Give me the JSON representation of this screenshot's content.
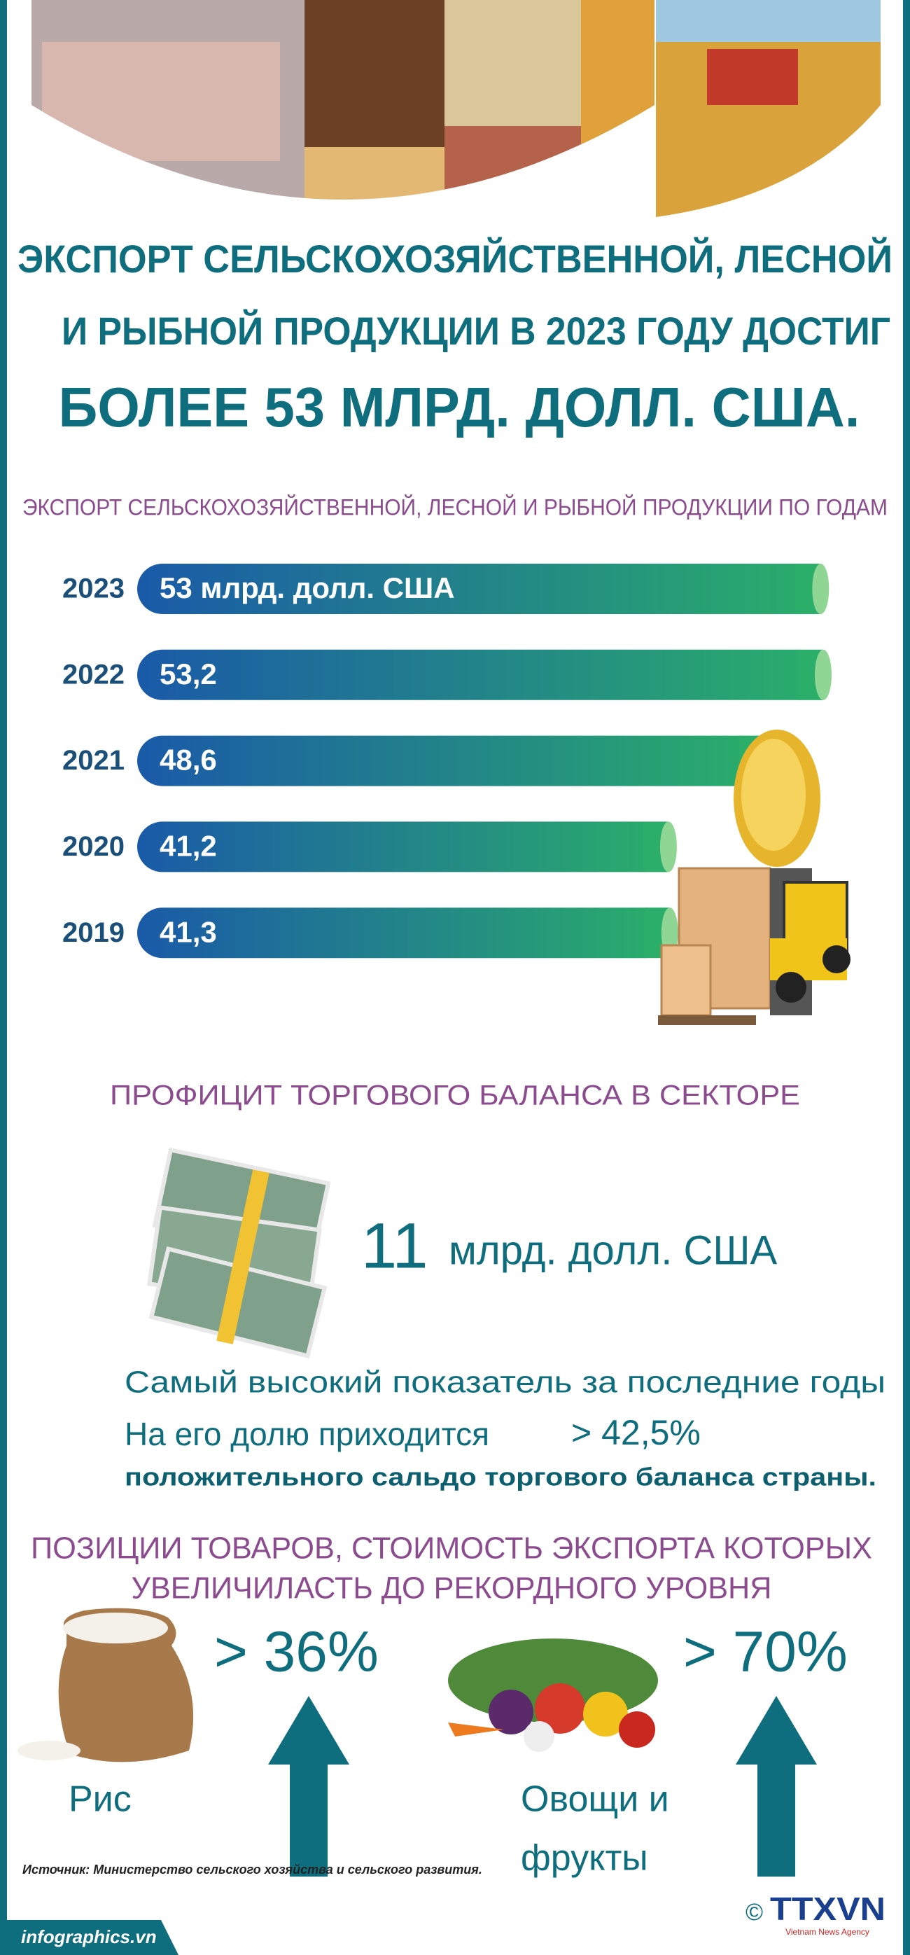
{
  "header": {
    "title_lines": [
      "ЭКСПОРТ СЕЛЬСКОХОЗЯЙСТВЕННОЙ, ЛЕСНОЙ",
      "И РЫБНОЙ ПРОДУКЦИИ В 2023 ГОДУ ДОСТИГ",
      "БОЛЕЕ 53 МЛРД. ДОЛЛ. США."
    ]
  },
  "chart_data": {
    "type": "bar",
    "orientation": "horizontal",
    "title": "ЭКСПОРТ СЕЛЬСКОХОЗЯЙСТВЕННОЙ, ЛЕСНОЙ И РЫБНОЙ ПРОДУКЦИИ ПО ГОДАМ",
    "categories": [
      "2023",
      "2022",
      "2021",
      "2020",
      "2019"
    ],
    "values": [
      53,
      53.2,
      48.6,
      41.2,
      41.3
    ],
    "value_labels": [
      "53 млрд. долл. США",
      "53,2",
      "48,6",
      "41,2",
      "41,3"
    ],
    "color": "#1d61a8"
  },
  "surplus": {
    "title": "ПРОФИЦИТ ТОРГОВОГО БАЛАНСА В СЕКТОРЕ",
    "amount": 11,
    "unit": "млрд. долл. США",
    "note": "Самый высокий показатель за последние годы",
    "share_text": "На его долю приходится",
    "share_label": "> 42,5%",
    "share_note": "положительного сальдо торгового баланса страны."
  },
  "records": {
    "title_lines": [
      "ПОЗИЦИИ ТОВАРОВ, СТОИМОСТЬ ЭКСПОРТА КОТОРЫХ",
      "УВЕЛИЧИЛАСТЬ ДО РЕКОРДНОГО УРОВНЯ"
    ],
    "items": [
      {
        "label_lines": [
          "Рис"
        ],
        "growth": "> 36%"
      },
      {
        "label_lines": [
          "Овощи и",
          "фрукты"
        ],
        "growth": "> 70%"
      }
    ]
  },
  "footer": {
    "source": "Источник: Министерство сельского хозяйства и сельского развития.",
    "site": "infographics.vn",
    "copyright": "©",
    "logo": "TTXVN",
    "logo_sub": "Vietnam News Agency"
  }
}
